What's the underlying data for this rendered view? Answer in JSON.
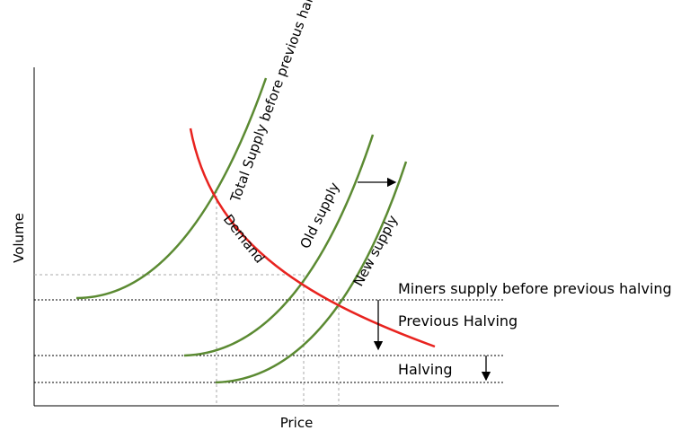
{
  "axes": {
    "y_label": "Volume",
    "x_label": "Price"
  },
  "curves": {
    "total_supply": "Total Supply before previous halving",
    "demand": "Demand",
    "old_supply": "Old supply",
    "new_supply": "New supply"
  },
  "annotations": {
    "miners_supply": "Miners supply before previous halving",
    "previous_halving": "Previous Halving",
    "halving": "Halving"
  }
}
